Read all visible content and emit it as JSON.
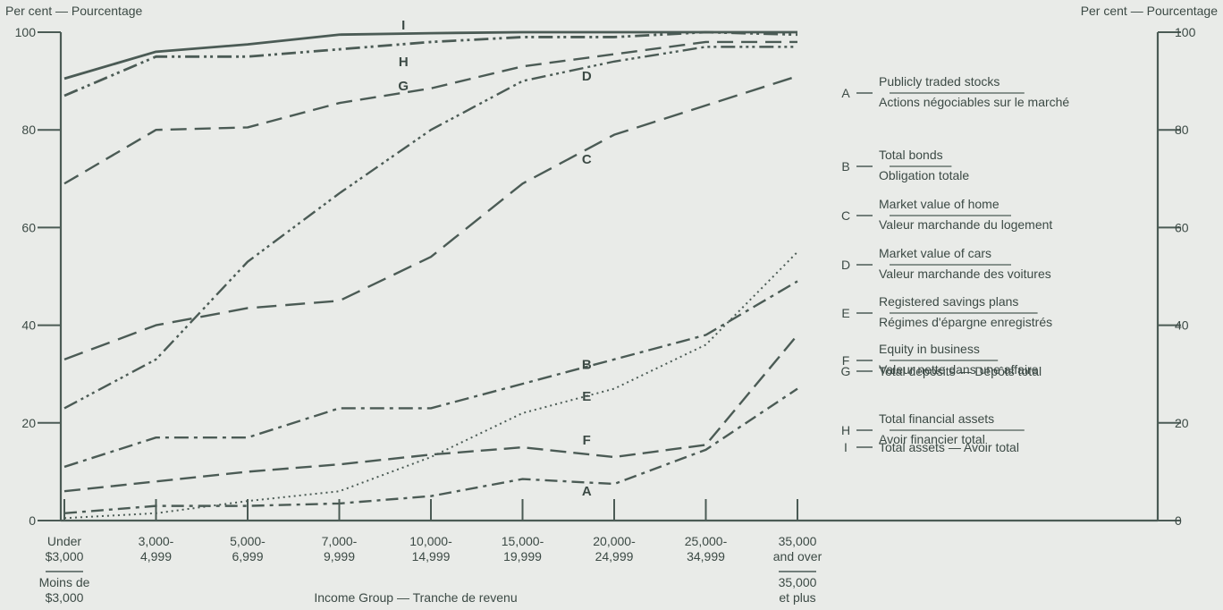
{
  "chart_data": {
    "type": "line",
    "ylabel_left": "Per cent — Pourcentage",
    "ylabel_right": "Per cent — Pourcentage",
    "xlabel": "Income Group — Tranche de revenu",
    "ylim": [
      0,
      100
    ],
    "yticks": [
      0,
      20,
      40,
      60,
      80,
      100
    ],
    "categories": [
      {
        "lines": [
          "Under",
          "$3,000"
        ],
        "alt": [
          "Moins de",
          "$3,000"
        ]
      },
      {
        "lines": [
          "3,000-",
          "4,999"
        ]
      },
      {
        "lines": [
          "5,000-",
          "6,999"
        ]
      },
      {
        "lines": [
          "7,000-",
          "9,999"
        ]
      },
      {
        "lines": [
          "10,000-",
          "14,999"
        ]
      },
      {
        "lines": [
          "15,000-",
          "19,999"
        ]
      },
      {
        "lines": [
          "20,000-",
          "24,999"
        ]
      },
      {
        "lines": [
          "25,000-",
          "34,999"
        ]
      },
      {
        "lines": [
          "35,000",
          "and over"
        ],
        "alt": [
          "35,000",
          "et plus"
        ]
      }
    ],
    "series": [
      {
        "name": "A",
        "values": [
          1.5,
          3,
          3,
          3.5,
          5,
          8.5,
          7.5,
          14.5,
          27
        ]
      },
      {
        "name": "B",
        "values": [
          11,
          17,
          17,
          23,
          23,
          28,
          33,
          38,
          49
        ]
      },
      {
        "name": "C",
        "values": [
          33,
          40,
          43.5,
          45,
          54,
          69,
          79,
          85,
          91
        ]
      },
      {
        "name": "D",
        "values": [
          23,
          33,
          53,
          67,
          80,
          90,
          94,
          97,
          97
        ]
      },
      {
        "name": "E",
        "values": [
          0.5,
          1.5,
          4,
          6,
          13,
          22,
          27,
          36,
          55
        ]
      },
      {
        "name": "F",
        "values": [
          6,
          8,
          10,
          11.5,
          13.5,
          15,
          13,
          15.5,
          38
        ]
      },
      {
        "name": "G",
        "values": [
          69,
          80,
          80.5,
          85.5,
          88.5,
          93,
          95.5,
          98,
          98
        ]
      },
      {
        "name": "H",
        "values": [
          87,
          95,
          95,
          96.5,
          98,
          99,
          99,
          100,
          99.5
        ]
      },
      {
        "name": "I",
        "values": [
          90.5,
          96,
          97.5,
          99.5,
          99.8,
          100,
          100,
          100,
          100
        ]
      }
    ],
    "series_labels": [
      {
        "name": "A",
        "anchor_x": 5.7,
        "anchor_y": 6
      },
      {
        "name": "B",
        "anchor_x": 5.7,
        "anchor_y": 32
      },
      {
        "name": "C",
        "anchor_x": 5.7,
        "anchor_y": 74
      },
      {
        "name": "D",
        "anchor_x": 5.7,
        "anchor_y": 91
      },
      {
        "name": "E",
        "anchor_x": 5.7,
        "anchor_y": 25.5
      },
      {
        "name": "F",
        "anchor_x": 5.7,
        "anchor_y": 16.5
      },
      {
        "name": "G",
        "anchor_x": 3.7,
        "anchor_y": 89
      },
      {
        "name": "H",
        "anchor_x": 3.7,
        "anchor_y": 94
      },
      {
        "name": "I",
        "anchor_x": 3.7,
        "anchor_y": 101.5
      }
    ],
    "legend": [
      {
        "key": "A",
        "lines": [
          "Publicly traded stocks",
          "Actions négociables sur le marché"
        ]
      },
      {
        "key": "B",
        "lines": [
          "Total bonds",
          "Obligation totale"
        ]
      },
      {
        "key": "C",
        "lines": [
          "Market value of home",
          "Valeur marchande du logement"
        ]
      },
      {
        "key": "D",
        "lines": [
          "Market value of cars",
          "Valeur marchande des voitures"
        ]
      },
      {
        "key": "E",
        "lines": [
          "Registered savings plans",
          "Régimes d'épargne enregistrés"
        ]
      },
      {
        "key": "F",
        "lines": [
          "Equity in business",
          "Valeur nette dans une affaire"
        ]
      },
      {
        "key": "G",
        "lines": [
          "Total deposits — Dépôts total"
        ]
      },
      {
        "key": "H",
        "lines": [
          "Total financial assets",
          "Avoir financier total"
        ]
      },
      {
        "key": "I",
        "lines": [
          "Total assets — Avoir total"
        ]
      }
    ],
    "legend_placement": "right",
    "grid": false,
    "colors": {
      "line": "#4b5b55",
      "text": "#3c4a45",
      "background": "#e9ebe8"
    }
  }
}
